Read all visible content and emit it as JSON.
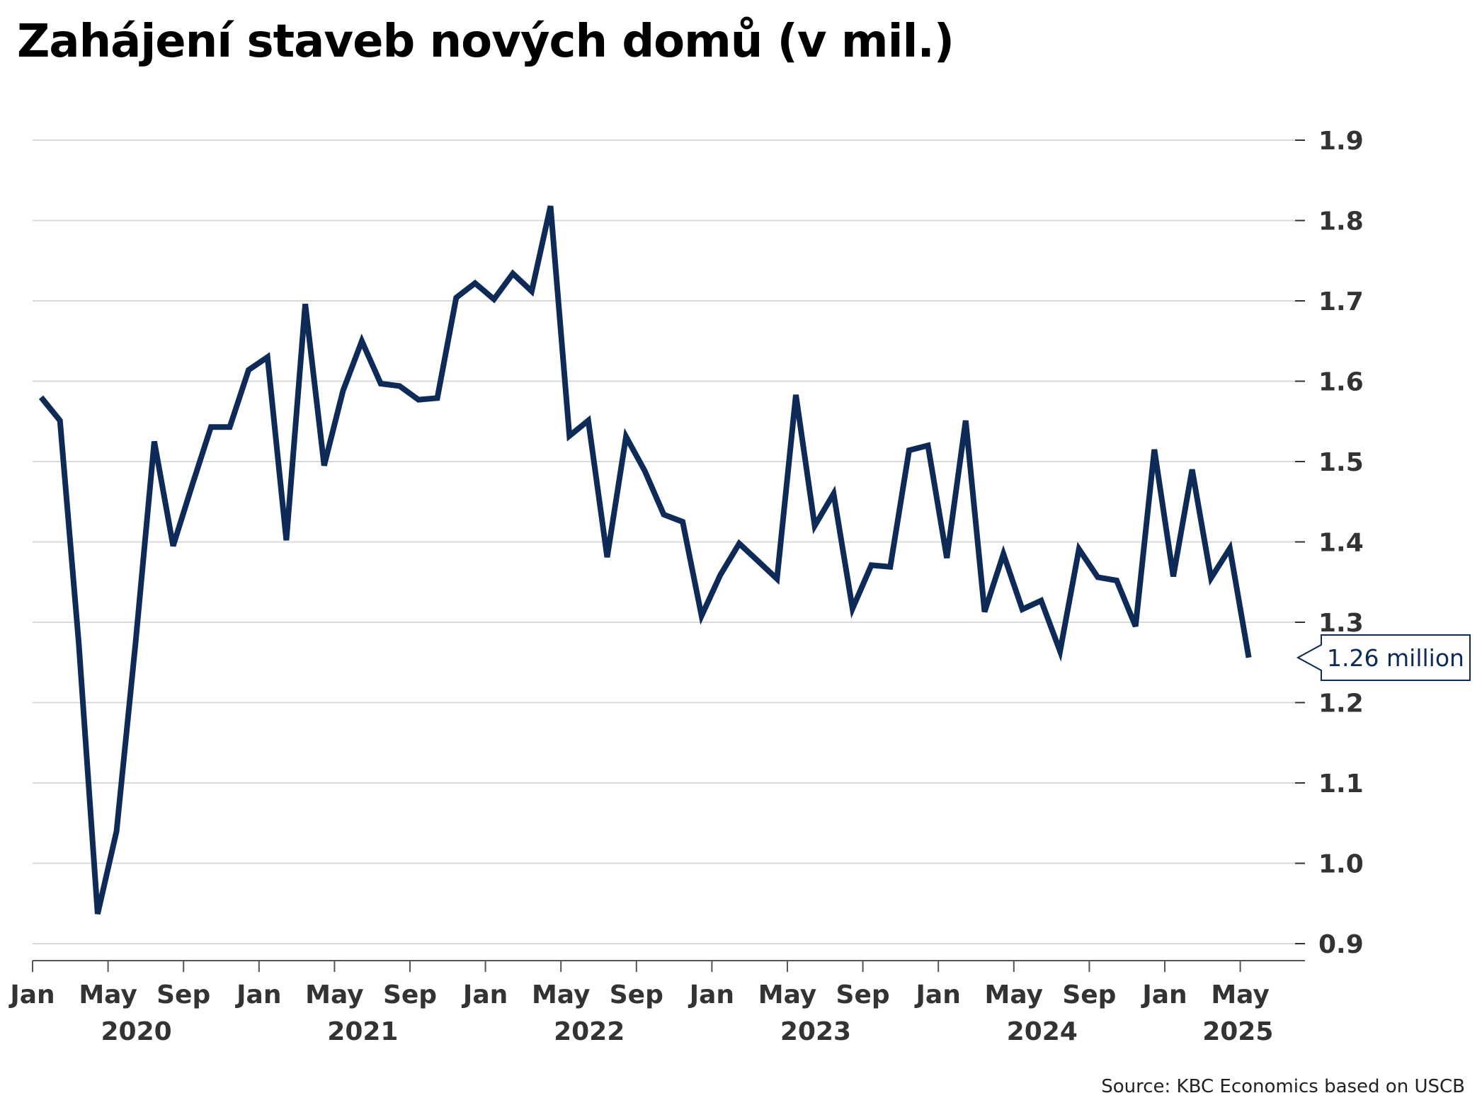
{
  "chart_data": {
    "type": "line",
    "title": "Zahájení staveb nových domů (v mil.)",
    "xlabel": "",
    "ylabel": "",
    "ylim": [
      0.9,
      1.9
    ],
    "y_ticks": [
      "0.9",
      "1.0",
      "1.1",
      "1.2",
      "1.3",
      "1.4",
      "1.5",
      "1.6",
      "1.7",
      "1.8",
      "1.9"
    ],
    "x_month_ticks": [
      "Jan",
      "May",
      "Sep",
      "Jan",
      "May",
      "Sep",
      "Jan",
      "May",
      "Sep",
      "Jan",
      "May",
      "Sep",
      "Jan",
      "May",
      "Sep",
      "Jan",
      "May"
    ],
    "x_year_labels": [
      "2020",
      "2021",
      "2022",
      "2023",
      "2024",
      "2025"
    ],
    "x": [
      "2020-01",
      "2020-02",
      "2020-03",
      "2020-04",
      "2020-05",
      "2020-06",
      "2020-07",
      "2020-08",
      "2020-09",
      "2020-10",
      "2020-11",
      "2020-12",
      "2021-01",
      "2021-02",
      "2021-03",
      "2021-04",
      "2021-05",
      "2021-06",
      "2021-07",
      "2021-08",
      "2021-09",
      "2021-10",
      "2021-11",
      "2021-12",
      "2022-01",
      "2022-02",
      "2022-03",
      "2022-04",
      "2022-05",
      "2022-06",
      "2022-07",
      "2022-08",
      "2022-09",
      "2022-10",
      "2022-11",
      "2022-12",
      "2023-01",
      "2023-02",
      "2023-03",
      "2023-04",
      "2023-05",
      "2023-06",
      "2023-07",
      "2023-08",
      "2023-09",
      "2023-10",
      "2023-11",
      "2023-12",
      "2024-01",
      "2024-02",
      "2024-03",
      "2024-04",
      "2024-05",
      "2024-06",
      "2024-07",
      "2024-08",
      "2024-09",
      "2024-10",
      "2024-11",
      "2024-12",
      "2025-01",
      "2025-02",
      "2025-03",
      "2025-04",
      "2025-05"
    ],
    "series": [
      {
        "name": "",
        "color": "#0d2b56",
        "values": [
          1.58,
          1.551,
          1.273,
          0.937,
          1.04,
          1.273,
          1.525,
          1.395,
          1.47,
          1.543,
          1.543,
          1.614,
          1.63,
          1.402,
          1.696,
          1.495,
          1.588,
          1.65,
          1.597,
          1.594,
          1.577,
          1.579,
          1.704,
          1.722,
          1.702,
          1.734,
          1.712,
          1.818,
          1.532,
          1.551,
          1.381,
          1.531,
          1.488,
          1.434,
          1.425,
          1.308,
          1.359,
          1.398,
          1.376,
          1.354,
          1.583,
          1.42,
          1.46,
          1.317,
          1.371,
          1.369,
          1.514,
          1.52,
          1.38,
          1.551,
          1.313,
          1.385,
          1.316,
          1.327,
          1.264,
          1.391,
          1.356,
          1.352,
          1.295,
          1.515,
          1.357,
          1.49,
          1.355,
          1.392,
          1.256
        ]
      }
    ],
    "annotation": "1.26 million",
    "grid": true,
    "legend": "none"
  },
  "source": "Source: KBC Economics based on USCB"
}
